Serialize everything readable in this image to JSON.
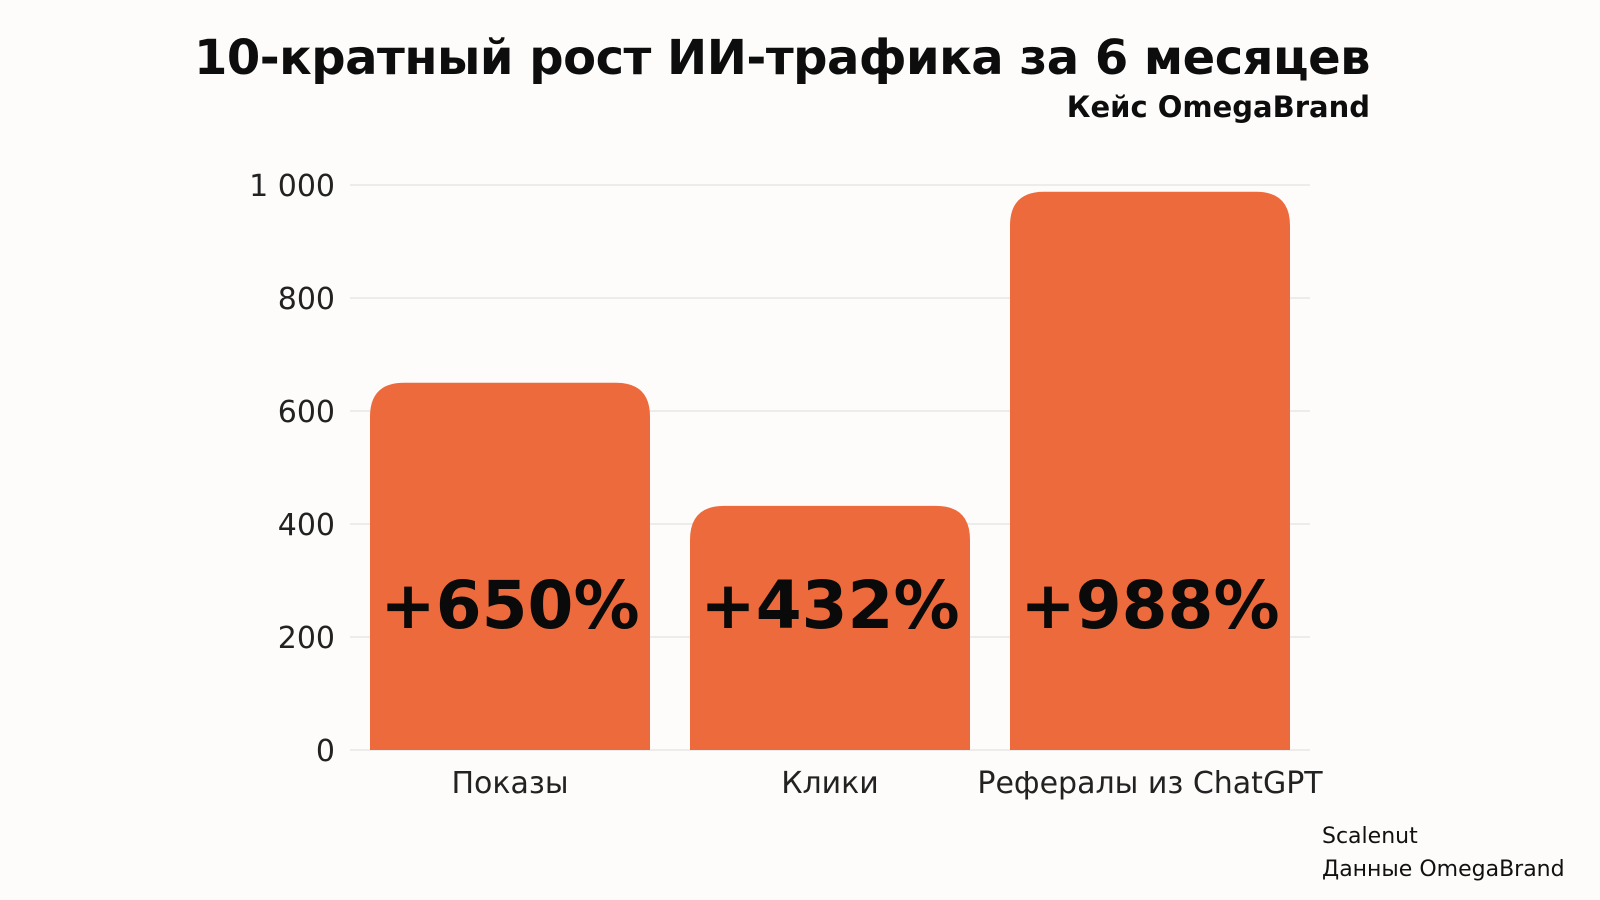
{
  "chart_data": {
    "type": "bar",
    "title": "10-кратный рост ИИ-трафика за 6 месяцев",
    "subtitle": "Кейс OmegaBrand",
    "categories": [
      "Показы",
      "Клики",
      "Рефералы из ChatGPT"
    ],
    "values": [
      650,
      432,
      988
    ],
    "data_labels": [
      "+650%",
      "+432%",
      "+988%"
    ],
    "yticks": [
      0,
      200,
      400,
      600,
      800,
      1000
    ],
    "ytick_labels": [
      "0",
      "200",
      "400",
      "600",
      "800",
      "1 000"
    ],
    "ylim": [
      0,
      1000
    ],
    "grid": true,
    "legend": "none",
    "colors": {
      "bar": "#ec6a3b",
      "grid": "#e3e3e3"
    }
  },
  "source": {
    "line1": "Scalenut",
    "line2": "Данные OmegaBrand"
  }
}
